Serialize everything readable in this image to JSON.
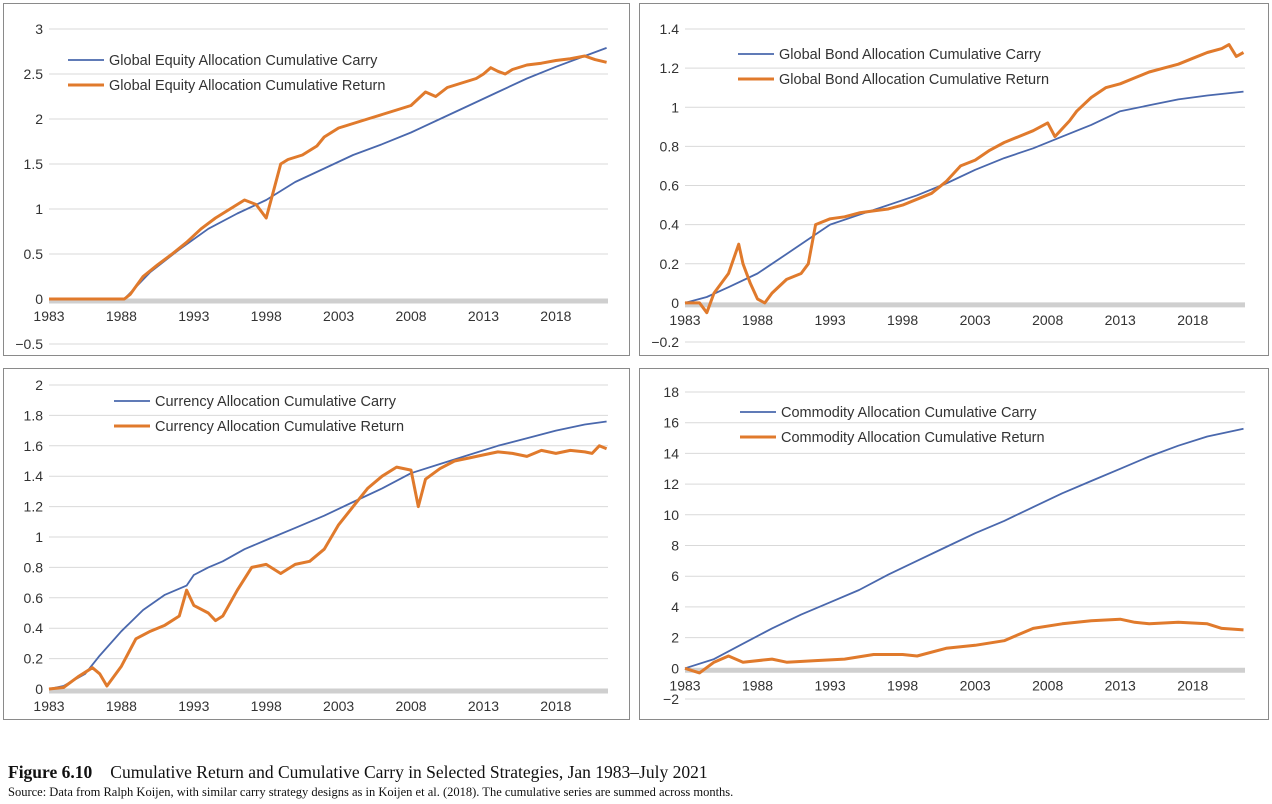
{
  "colors": {
    "carry": "#4a68ad",
    "return": "#e07a2c",
    "grid": "#d9d9d9",
    "zero_axis": "#cfcfcf",
    "text": "#333333"
  },
  "chart_data": [
    {
      "type": "line",
      "x_ticks": [
        "1983",
        "1988",
        "1993",
        "1998",
        "2003",
        "2008",
        "2013",
        "2018"
      ],
      "ylim": [
        -0.5,
        3
      ],
      "y_ticks": [
        "−0.5",
        "0",
        "0.5",
        "1",
        "1.5",
        "2",
        "2.5",
        "3"
      ],
      "y_tick_values": [
        -0.5,
        0,
        0.5,
        1,
        1.5,
        2,
        2.5,
        3
      ],
      "grid": true,
      "legend_position": "top-left",
      "series": [
        {
          "name": "Global Equity Allocation Cumulative Carry",
          "role": "carry",
          "x": [
            1983,
            1988.2,
            1988.5,
            1990,
            1992,
            1994,
            1996,
            1998,
            2000,
            2002,
            2004,
            2006,
            2008,
            2010,
            2012,
            2014,
            2016,
            2018,
            2020,
            2021.5
          ],
          "y": [
            0,
            0,
            0.05,
            0.3,
            0.55,
            0.78,
            0.95,
            1.1,
            1.3,
            1.45,
            1.6,
            1.72,
            1.85,
            2.0,
            2.15,
            2.3,
            2.45,
            2.58,
            2.7,
            2.79
          ]
        },
        {
          "name": "Global Equity Allocation Cumulative Return",
          "role": "return",
          "x": [
            1983,
            1988.2,
            1988.6,
            1989.5,
            1990.5,
            1991.5,
            1992.5,
            1993.5,
            1994.5,
            1995.5,
            1996.5,
            1997.3,
            1998,
            1998.5,
            1999,
            1999.5,
            2000.5,
            2001.5,
            2002,
            2003,
            2004,
            2005,
            2006,
            2007,
            2008,
            2009,
            2009.7,
            2010.5,
            2011.5,
            2012.5,
            2013,
            2013.5,
            2014,
            2014.5,
            2015,
            2016,
            2017,
            2018,
            2019,
            2020,
            2020.7,
            2021.5
          ],
          "y": [
            0,
            0,
            0.05,
            0.25,
            0.38,
            0.5,
            0.63,
            0.78,
            0.9,
            1.0,
            1.1,
            1.05,
            0.9,
            1.2,
            1.5,
            1.55,
            1.6,
            1.7,
            1.8,
            1.9,
            1.95,
            2.0,
            2.05,
            2.1,
            2.15,
            2.3,
            2.25,
            2.35,
            2.4,
            2.45,
            2.5,
            2.57,
            2.53,
            2.5,
            2.55,
            2.6,
            2.62,
            2.65,
            2.67,
            2.7,
            2.66,
            2.63
          ]
        }
      ]
    },
    {
      "type": "line",
      "x_ticks": [
        "1983",
        "1988",
        "1993",
        "1998",
        "2003",
        "2008",
        "2013",
        "2018"
      ],
      "ylim": [
        -0.2,
        1.4
      ],
      "y_ticks": [
        "−0.2",
        "0",
        "0.2",
        "0.4",
        "0.6",
        "0.8",
        "1",
        "1.2",
        "1.4"
      ],
      "y_tick_values": [
        -0.2,
        0,
        0.2,
        0.4,
        0.6,
        0.8,
        1,
        1.2,
        1.4
      ],
      "grid": true,
      "legend_position": "top-right",
      "series": [
        {
          "name": "Global Bond Allocation Cumulative Carry",
          "role": "carry",
          "x": [
            1983,
            1984.5,
            1986,
            1988,
            1990,
            1992,
            1993,
            1995,
            1997,
            1999,
            2001,
            2003,
            2005,
            2007,
            2009,
            2011,
            2013,
            2015,
            2017,
            2019,
            2021.5
          ],
          "y": [
            0,
            0.03,
            0.08,
            0.15,
            0.25,
            0.35,
            0.4,
            0.45,
            0.5,
            0.55,
            0.61,
            0.68,
            0.74,
            0.79,
            0.85,
            0.91,
            0.98,
            1.01,
            1.04,
            1.06,
            1.08
          ]
        },
        {
          "name": "Global Bond Allocation Cumulative Return",
          "role": "return",
          "x": [
            1983,
            1984,
            1984.5,
            1985,
            1986,
            1986.7,
            1987,
            1987.5,
            1988,
            1988.5,
            1989,
            1990,
            1991,
            1991.5,
            1992,
            1993,
            1994,
            1995,
            1996,
            1997,
            1998,
            1999,
            2000,
            2001,
            2002,
            2003,
            2004,
            2005,
            2006,
            2007,
            2008,
            2008.5,
            2009.5,
            2010,
            2011,
            2012,
            2013,
            2014,
            2015,
            2016,
            2017,
            2018,
            2019,
            2020,
            2020.5,
            2021,
            2021.5
          ],
          "y": [
            0,
            0,
            -0.05,
            0.05,
            0.15,
            0.3,
            0.2,
            0.1,
            0.02,
            0.0,
            0.05,
            0.12,
            0.15,
            0.2,
            0.4,
            0.43,
            0.44,
            0.46,
            0.47,
            0.48,
            0.5,
            0.53,
            0.56,
            0.62,
            0.7,
            0.73,
            0.78,
            0.82,
            0.85,
            0.88,
            0.92,
            0.85,
            0.93,
            0.98,
            1.05,
            1.1,
            1.12,
            1.15,
            1.18,
            1.2,
            1.22,
            1.25,
            1.28,
            1.3,
            1.32,
            1.26,
            1.28
          ]
        }
      ]
    },
    {
      "type": "line",
      "x_ticks": [
        "1983",
        "1988",
        "1993",
        "1998",
        "2003",
        "2008",
        "2013",
        "2018"
      ],
      "ylim": [
        0,
        2
      ],
      "y_ticks": [
        "0",
        "0.2",
        "0.4",
        "0.6",
        "0.8",
        "1",
        "1.2",
        "1.4",
        "1.6",
        "1.8",
        "2"
      ],
      "y_tick_values": [
        0,
        0.2,
        0.4,
        0.6,
        0.8,
        1,
        1.2,
        1.4,
        1.6,
        1.8,
        2
      ],
      "grid": true,
      "legend_position": "top-center",
      "series": [
        {
          "name": "Currency Allocation Cumulative Carry",
          "role": "carry",
          "x": [
            1983,
            1984,
            1985.5,
            1986.5,
            1988,
            1989.5,
            1991,
            1992.5,
            1993,
            1994,
            1995,
            1996.5,
            1998,
            2000,
            2002,
            2004,
            2006,
            2008,
            2010,
            2012,
            2014,
            2016,
            2018,
            2020,
            2021.5
          ],
          "y": [
            0,
            0.02,
            0.1,
            0.22,
            0.38,
            0.52,
            0.62,
            0.68,
            0.75,
            0.8,
            0.84,
            0.92,
            0.98,
            1.06,
            1.14,
            1.23,
            1.32,
            1.42,
            1.48,
            1.54,
            1.6,
            1.65,
            1.7,
            1.74,
            1.76
          ]
        },
        {
          "name": "Currency Allocation Cumulative Return",
          "role": "return",
          "x": [
            1983,
            1984,
            1985,
            1986,
            1986.5,
            1987,
            1988,
            1989,
            1990,
            1991,
            1992,
            1992.5,
            1993,
            1994,
            1994.5,
            1995,
            1996,
            1997,
            1998,
            1999,
            2000,
            2001,
            2002,
            2003,
            2004,
            2005,
            2006,
            2007,
            2008,
            2008.5,
            2009,
            2010,
            2011,
            2012,
            2013,
            2014,
            2015,
            2016,
            2017,
            2018,
            2019,
            2020,
            2020.5,
            2021,
            2021.5
          ],
          "y": [
            0,
            0.01,
            0.08,
            0.14,
            0.1,
            0.02,
            0.15,
            0.33,
            0.38,
            0.42,
            0.48,
            0.65,
            0.55,
            0.5,
            0.45,
            0.48,
            0.65,
            0.8,
            0.82,
            0.76,
            0.82,
            0.84,
            0.92,
            1.08,
            1.2,
            1.32,
            1.4,
            1.46,
            1.44,
            1.2,
            1.38,
            1.45,
            1.5,
            1.52,
            1.54,
            1.56,
            1.55,
            1.53,
            1.57,
            1.55,
            1.57,
            1.56,
            1.55,
            1.6,
            1.58
          ]
        }
      ]
    },
    {
      "type": "line",
      "x_ticks": [
        "1983",
        "1988",
        "1993",
        "1998",
        "2003",
        "2008",
        "2013",
        "2018"
      ],
      "ylim": [
        -2,
        18
      ],
      "y_ticks": [
        "−2",
        "0",
        "2",
        "4",
        "6",
        "8",
        "10",
        "12",
        "14",
        "16",
        "18"
      ],
      "y_tick_values": [
        -2,
        0,
        2,
        4,
        6,
        8,
        10,
        12,
        14,
        16,
        18
      ],
      "grid": true,
      "legend_position": "top-center",
      "series": [
        {
          "name": "Commodity Allocation Cumulative Carry",
          "role": "carry",
          "x": [
            1983,
            1985,
            1987,
            1989,
            1991,
            1993,
            1995,
            1997,
            1999,
            2001,
            2003,
            2005,
            2007,
            2009,
            2011,
            2013,
            2015,
            2017,
            2019,
            2021.5
          ],
          "y": [
            0,
            0.6,
            1.6,
            2.6,
            3.5,
            4.3,
            5.1,
            6.1,
            7.0,
            7.9,
            8.8,
            9.6,
            10.5,
            11.4,
            12.2,
            13.0,
            13.8,
            14.5,
            15.1,
            15.6
          ]
        },
        {
          "name": "Commodity Allocation Cumulative Return",
          "role": "return",
          "x": [
            1983,
            1984,
            1985,
            1986,
            1987,
            1989,
            1990,
            1992,
            1994,
            1996,
            1998,
            1999,
            2001,
            2003,
            2005,
            2006,
            2007,
            2009,
            2011,
            2013,
            2014,
            2015,
            2017,
            2019,
            2020,
            2021.5
          ],
          "y": [
            0,
            -0.3,
            0.4,
            0.8,
            0.4,
            0.6,
            0.4,
            0.5,
            0.6,
            0.9,
            0.9,
            0.8,
            1.3,
            1.5,
            1.8,
            2.2,
            2.6,
            2.9,
            3.1,
            3.2,
            3.0,
            2.9,
            3.0,
            2.9,
            2.6,
            2.5
          ]
        }
      ]
    }
  ],
  "caption": {
    "label": "Figure 6.10",
    "title": "Cumulative Return and Cumulative Carry in Selected Strategies, Jan 1983–July 2021",
    "source": "Source: Data from Ralph Koijen, with similar carry strategy designs as in Koijen et al. (2018). The cumulative series are summed across months."
  }
}
